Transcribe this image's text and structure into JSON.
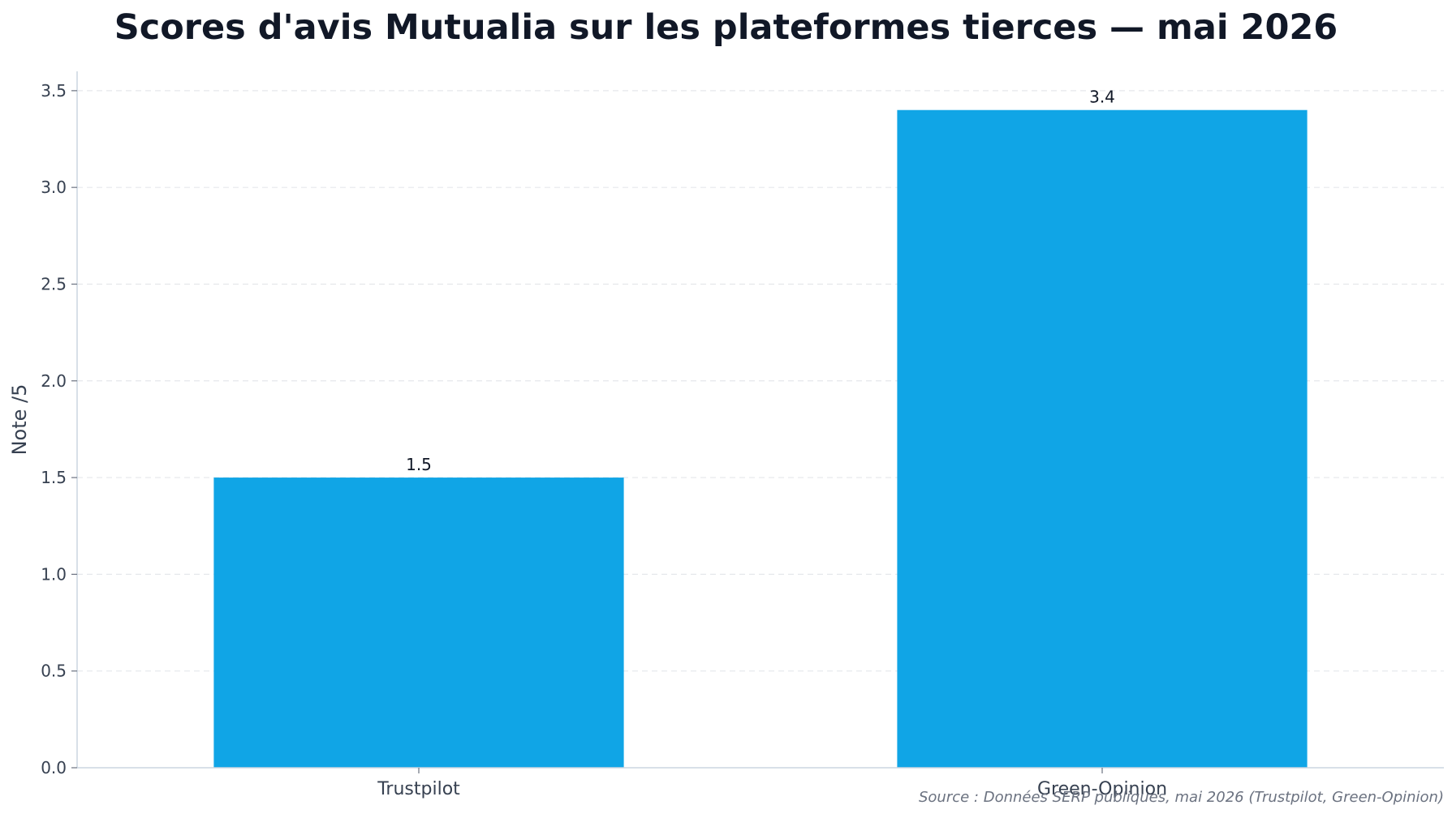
{
  "chart_data": {
    "type": "bar",
    "title": "Scores d'avis Mutualia sur les plateformes tierces — mai 2026",
    "xlabel": "",
    "ylabel": "Note /5",
    "categories": [
      "Trustpilot",
      "Green-Opinion"
    ],
    "values": [
      1.5,
      3.4
    ],
    "data_labels": [
      "1.5",
      "3.4"
    ],
    "ylim": [
      0,
      3.6
    ],
    "yticks": [
      0.0,
      0.5,
      1.0,
      1.5,
      2.0,
      2.5,
      3.0,
      3.5
    ],
    "ytick_labels": [
      "0.0",
      "0.5",
      "1.0",
      "1.5",
      "2.0",
      "2.5",
      "3.0",
      "3.5"
    ],
    "grid": true,
    "legend": "none",
    "bar_color": "#10a5e6",
    "source": "Source : Données SERP publiques, mai 2026 (Trustpilot, Green-Opinion)"
  }
}
